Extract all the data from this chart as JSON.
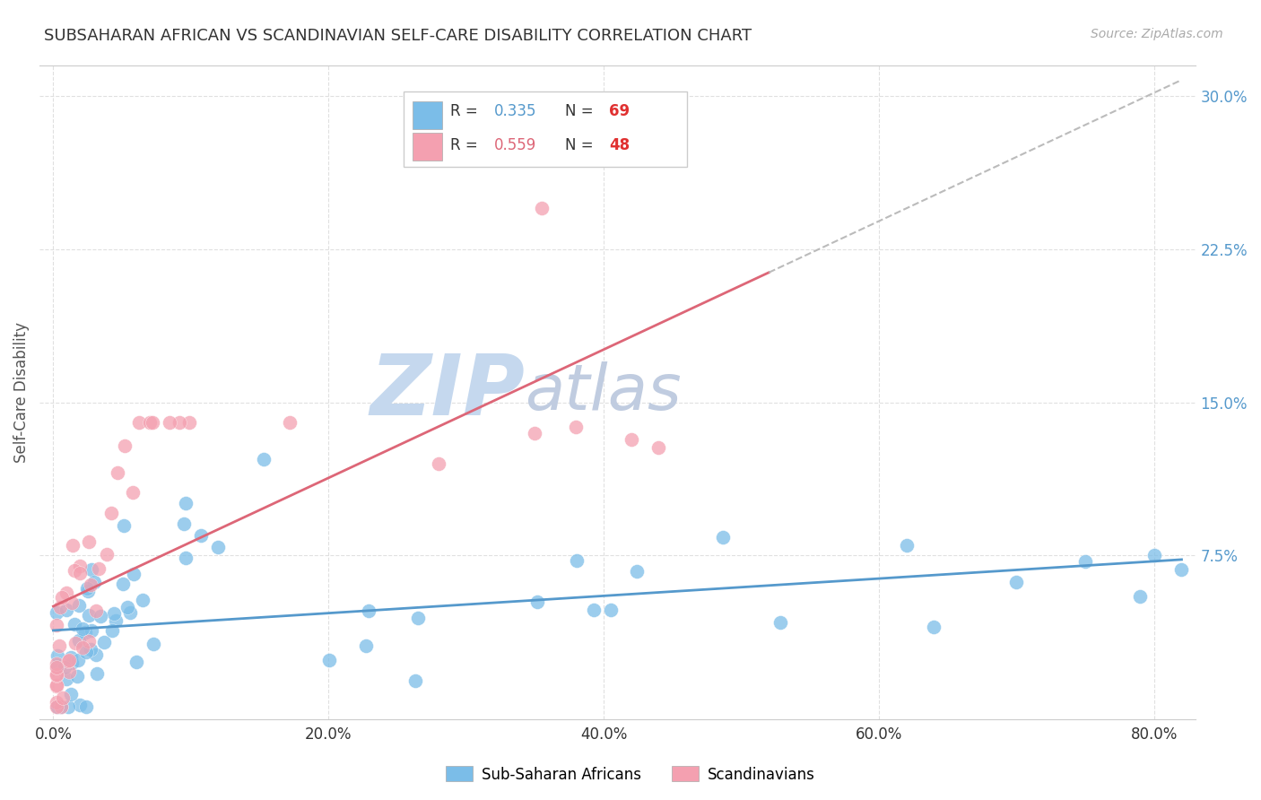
{
  "title": "SUBSAHARAN AFRICAN VS SCANDINAVIAN SELF-CARE DISABILITY CORRELATION CHART",
  "source": "Source: ZipAtlas.com",
  "ylabel": "Self-Care Disability",
  "xlabel_ticks": [
    "0.0%",
    "20.0%",
    "40.0%",
    "60.0%",
    "80.0%"
  ],
  "xlabel_tick_vals": [
    0.0,
    0.2,
    0.4,
    0.6,
    0.8
  ],
  "ytick_labels": [
    "7.5%",
    "15.0%",
    "22.5%",
    "30.0%"
  ],
  "ytick_vals": [
    0.075,
    0.15,
    0.225,
    0.3
  ],
  "xlim": [
    -0.01,
    0.83
  ],
  "ylim": [
    -0.005,
    0.315
  ],
  "blue_color": "#7bbde8",
  "pink_color": "#f4a0b0",
  "blue_line_color": "#5599cc",
  "pink_line_color": "#dd6677",
  "grid_color": "#dddddd",
  "background_color": "#ffffff",
  "watermark_zip_color": "#c5d8ee",
  "watermark_atlas_color": "#c0cce0",
  "blue_legend_color": "#5599cc",
  "pink_legend_color": "#dd6677",
  "n_blue_color": "#e03030",
  "n_pink_color": "#e03030",
  "legend_border_color": "#cccccc",
  "title_color": "#333333",
  "source_color": "#aaaaaa",
  "ytick_color": "#5599cc",
  "xtick_color": "#333333",
  "ylabel_color": "#555555"
}
